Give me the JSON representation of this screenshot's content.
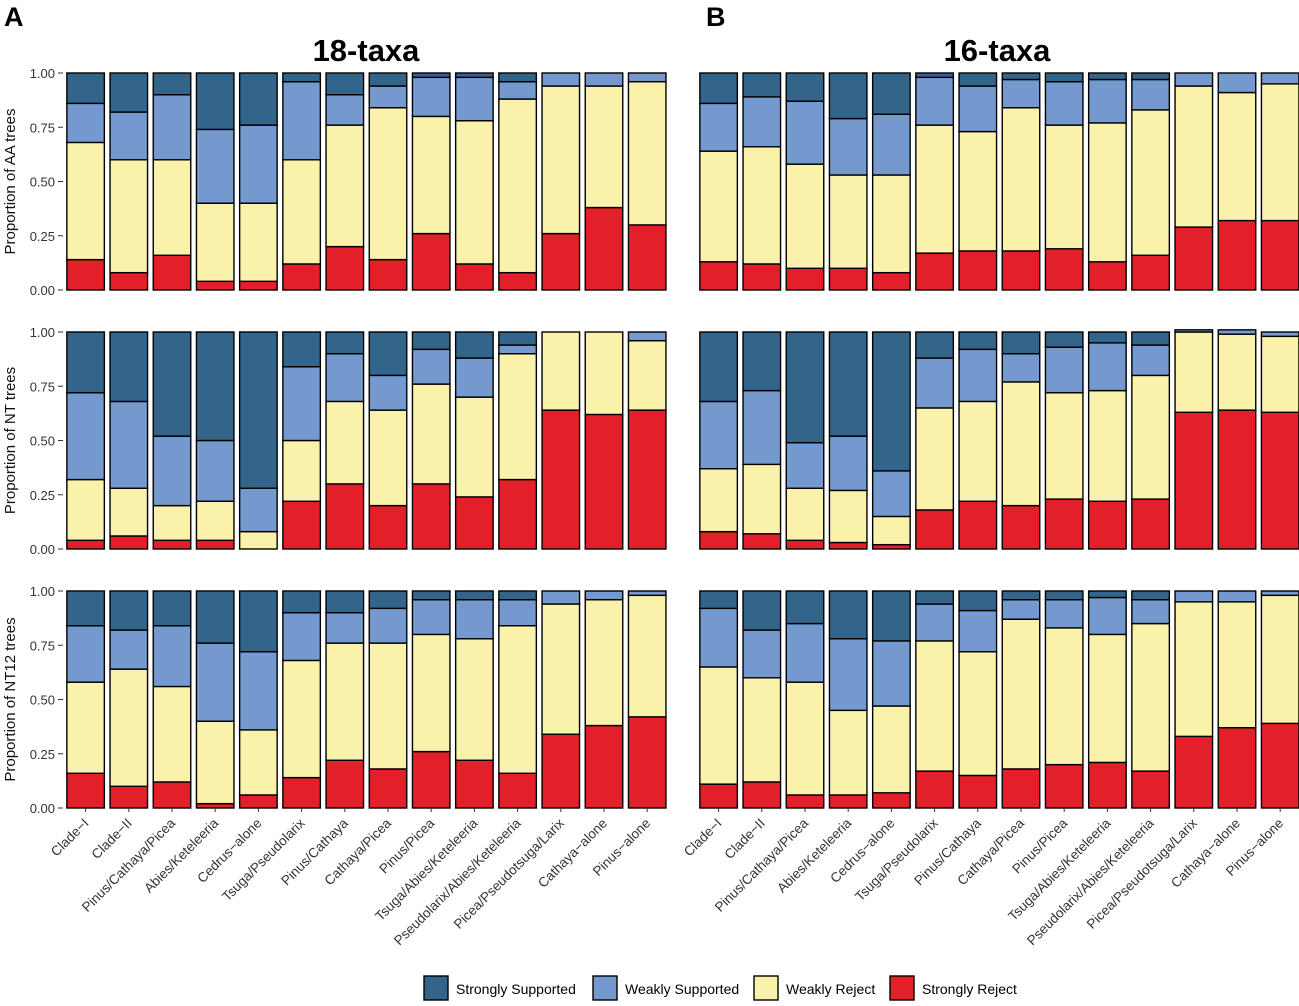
{
  "panel_labels": [
    "A",
    "B"
  ],
  "legend": [
    {
      "key": "ss",
      "label": "Strongly Supported",
      "color": "#33658a"
    },
    {
      "key": "ws",
      "label": "Weakly Supported",
      "color": "#7399cf"
    },
    {
      "key": "wr",
      "label": "Weakly Reject",
      "color": "#faf2aa"
    },
    {
      "key": "sr",
      "label": "Strongly Reject",
      "color": "#e3202a"
    }
  ],
  "chart_data": {
    "type": "bar",
    "stacked": true,
    "categories": [
      "Clade−I",
      "Clade−II",
      "Pinus/Cathaya/Picea",
      "Abies/Keteleeria",
      "Cedrus−alone",
      "Tsuga/Pseudolarix",
      "Pinus/Cathaya",
      "Cathaya/Picea",
      "Pinus/Picea",
      "Tsuga/Abies/Keteleeria",
      "Pseudolarix/Abies/Keteleeria",
      "Picea/Pseudotsuga/Larix",
      "Cathaya−alone",
      "Pinus−alone"
    ],
    "ylim": [
      0,
      1
    ],
    "yticks": [
      "0.00",
      "0.25",
      "0.50",
      "0.75",
      "1.00"
    ],
    "columns": [
      {
        "title": "18-taxa",
        "rows": [
          {
            "ylabel": "Proportion of AA trees",
            "sr": [
              0.14,
              0.08,
              0.16,
              0.04,
              0.04,
              0.12,
              0.2,
              0.14,
              0.26,
              0.12,
              0.08,
              0.26,
              0.38,
              0.3
            ],
            "wr": [
              0.54,
              0.52,
              0.44,
              0.36,
              0.36,
              0.48,
              0.56,
              0.7,
              0.54,
              0.66,
              0.8,
              0.68,
              0.56,
              0.66
            ],
            "ws": [
              0.18,
              0.22,
              0.3,
              0.34,
              0.36,
              0.36,
              0.14,
              0.1,
              0.18,
              0.2,
              0.08,
              0.06,
              0.06,
              0.04
            ],
            "ss": [
              0.14,
              0.18,
              0.1,
              0.26,
              0.24,
              0.04,
              0.1,
              0.06,
              0.02,
              0.02,
              0.04,
              0.0,
              0.0,
              0.0
            ]
          },
          {
            "ylabel": "Proportion of NT trees",
            "sr": [
              0.04,
              0.06,
              0.04,
              0.04,
              0.0,
              0.22,
              0.3,
              0.2,
              0.3,
              0.24,
              0.32,
              0.64,
              0.62,
              0.64
            ],
            "wr": [
              0.28,
              0.22,
              0.16,
              0.18,
              0.08,
              0.28,
              0.38,
              0.44,
              0.46,
              0.46,
              0.58,
              0.36,
              0.38,
              0.32
            ],
            "ws": [
              0.4,
              0.4,
              0.32,
              0.28,
              0.2,
              0.34,
              0.22,
              0.16,
              0.16,
              0.18,
              0.04,
              0.0,
              0.0,
              0.04
            ],
            "ss": [
              0.28,
              0.32,
              0.48,
              0.5,
              0.72,
              0.16,
              0.1,
              0.2,
              0.08,
              0.12,
              0.06,
              0.0,
              0.0,
              0.0
            ]
          },
          {
            "ylabel": "Proportion of NT12 trees",
            "sr": [
              0.16,
              0.1,
              0.12,
              0.02,
              0.06,
              0.14,
              0.22,
              0.18,
              0.26,
              0.22,
              0.16,
              0.34,
              0.38,
              0.42
            ],
            "wr": [
              0.42,
              0.54,
              0.44,
              0.38,
              0.3,
              0.54,
              0.54,
              0.58,
              0.54,
              0.56,
              0.68,
              0.6,
              0.58,
              0.56
            ],
            "ws": [
              0.26,
              0.18,
              0.28,
              0.36,
              0.36,
              0.22,
              0.14,
              0.16,
              0.16,
              0.18,
              0.12,
              0.06,
              0.04,
              0.02
            ],
            "ss": [
              0.16,
              0.18,
              0.16,
              0.24,
              0.28,
              0.1,
              0.1,
              0.08,
              0.04,
              0.04,
              0.04,
              0.0,
              0.0,
              0.0
            ]
          }
        ]
      },
      {
        "title": "16-taxa",
        "rows": [
          {
            "ylabel": "Proportion of AA trees",
            "sr": [
              0.13,
              0.12,
              0.1,
              0.1,
              0.08,
              0.17,
              0.18,
              0.18,
              0.19,
              0.13,
              0.16,
              0.29,
              0.32,
              0.32
            ],
            "wr": [
              0.51,
              0.54,
              0.48,
              0.43,
              0.45,
              0.59,
              0.55,
              0.66,
              0.57,
              0.64,
              0.67,
              0.65,
              0.59,
              0.63
            ],
            "ws": [
              0.22,
              0.23,
              0.29,
              0.26,
              0.28,
              0.22,
              0.21,
              0.13,
              0.2,
              0.2,
              0.14,
              0.06,
              0.09,
              0.05
            ],
            "ss": [
              0.14,
              0.11,
              0.13,
              0.21,
              0.19,
              0.02,
              0.06,
              0.03,
              0.04,
              0.03,
              0.03,
              0.0,
              0.0,
              0.0
            ]
          },
          {
            "ylabel": "",
            "sr": [
              0.08,
              0.07,
              0.04,
              0.03,
              0.02,
              0.18,
              0.22,
              0.2,
              0.23,
              0.22,
              0.23,
              0.63,
              0.64,
              0.63
            ],
            "wr": [
              0.29,
              0.32,
              0.24,
              0.24,
              0.13,
              0.47,
              0.46,
              0.57,
              0.49,
              0.51,
              0.57,
              0.37,
              0.35,
              0.35
            ],
            "ws": [
              0.31,
              0.34,
              0.21,
              0.25,
              0.21,
              0.23,
              0.24,
              0.13,
              0.21,
              0.22,
              0.14,
              0.01,
              0.02,
              0.02
            ],
            "ss": [
              0.32,
              0.27,
              0.51,
              0.48,
              0.64,
              0.12,
              0.08,
              0.1,
              0.07,
              0.05,
              0.06,
              0.0,
              0.0,
              0.0
            ]
          },
          {
            "ylabel": "",
            "sr": [
              0.11,
              0.12,
              0.06,
              0.06,
              0.07,
              0.17,
              0.15,
              0.18,
              0.2,
              0.21,
              0.17,
              0.33,
              0.37,
              0.39
            ],
            "wr": [
              0.54,
              0.48,
              0.52,
              0.39,
              0.4,
              0.6,
              0.57,
              0.69,
              0.63,
              0.59,
              0.68,
              0.62,
              0.58,
              0.59
            ],
            "ws": [
              0.27,
              0.22,
              0.27,
              0.33,
              0.3,
              0.17,
              0.19,
              0.09,
              0.13,
              0.17,
              0.11,
              0.05,
              0.05,
              0.02
            ],
            "ss": [
              0.08,
              0.18,
              0.15,
              0.22,
              0.23,
              0.06,
              0.09,
              0.04,
              0.04,
              0.03,
              0.04,
              0.0,
              0.0,
              0.0
            ]
          }
        ]
      }
    ]
  }
}
